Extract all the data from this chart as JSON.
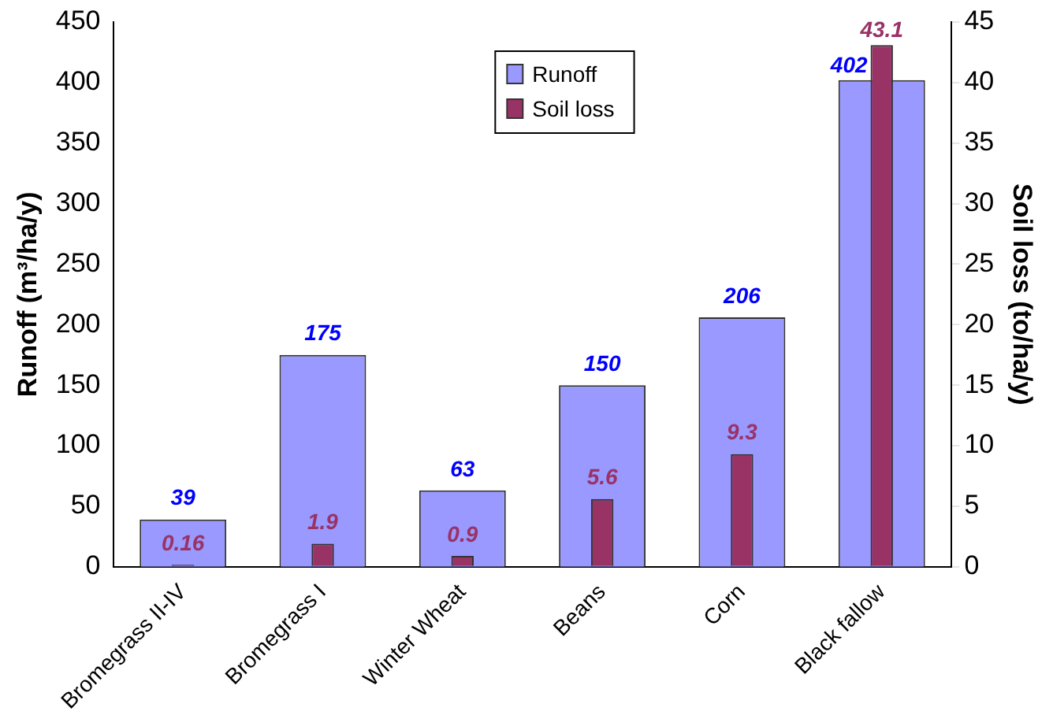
{
  "chart_data": {
    "type": "bar",
    "ylabel": "Runoff (m³/ha/y)",
    "y2label": "Soil loss (to/ha/y)",
    "categories": [
      "Bromegrass II-IV",
      "Bromegrass I",
      "Winter Wheat",
      "Beans",
      "Corn",
      "Black fallow"
    ],
    "series": [
      {
        "name": "Runoff",
        "color": "#9999ff",
        "values": [
          39,
          175,
          63,
          150,
          206,
          402
        ]
      },
      {
        "name": "Soil loss",
        "color": "#993366",
        "values": [
          0.16,
          1.9,
          0.9,
          5.6,
          9.3,
          43.1
        ],
        "axis": "y2"
      }
    ],
    "ylim": [
      0,
      450
    ],
    "yticks": [
      0,
      50,
      100,
      150,
      200,
      250,
      300,
      350,
      400,
      450
    ],
    "y2lim": [
      0,
      45
    ],
    "y2ticks": [
      0,
      5,
      10,
      15,
      20,
      25,
      30,
      35,
      40,
      45
    ],
    "data_labels": true,
    "legend": "top",
    "grid": false
  }
}
